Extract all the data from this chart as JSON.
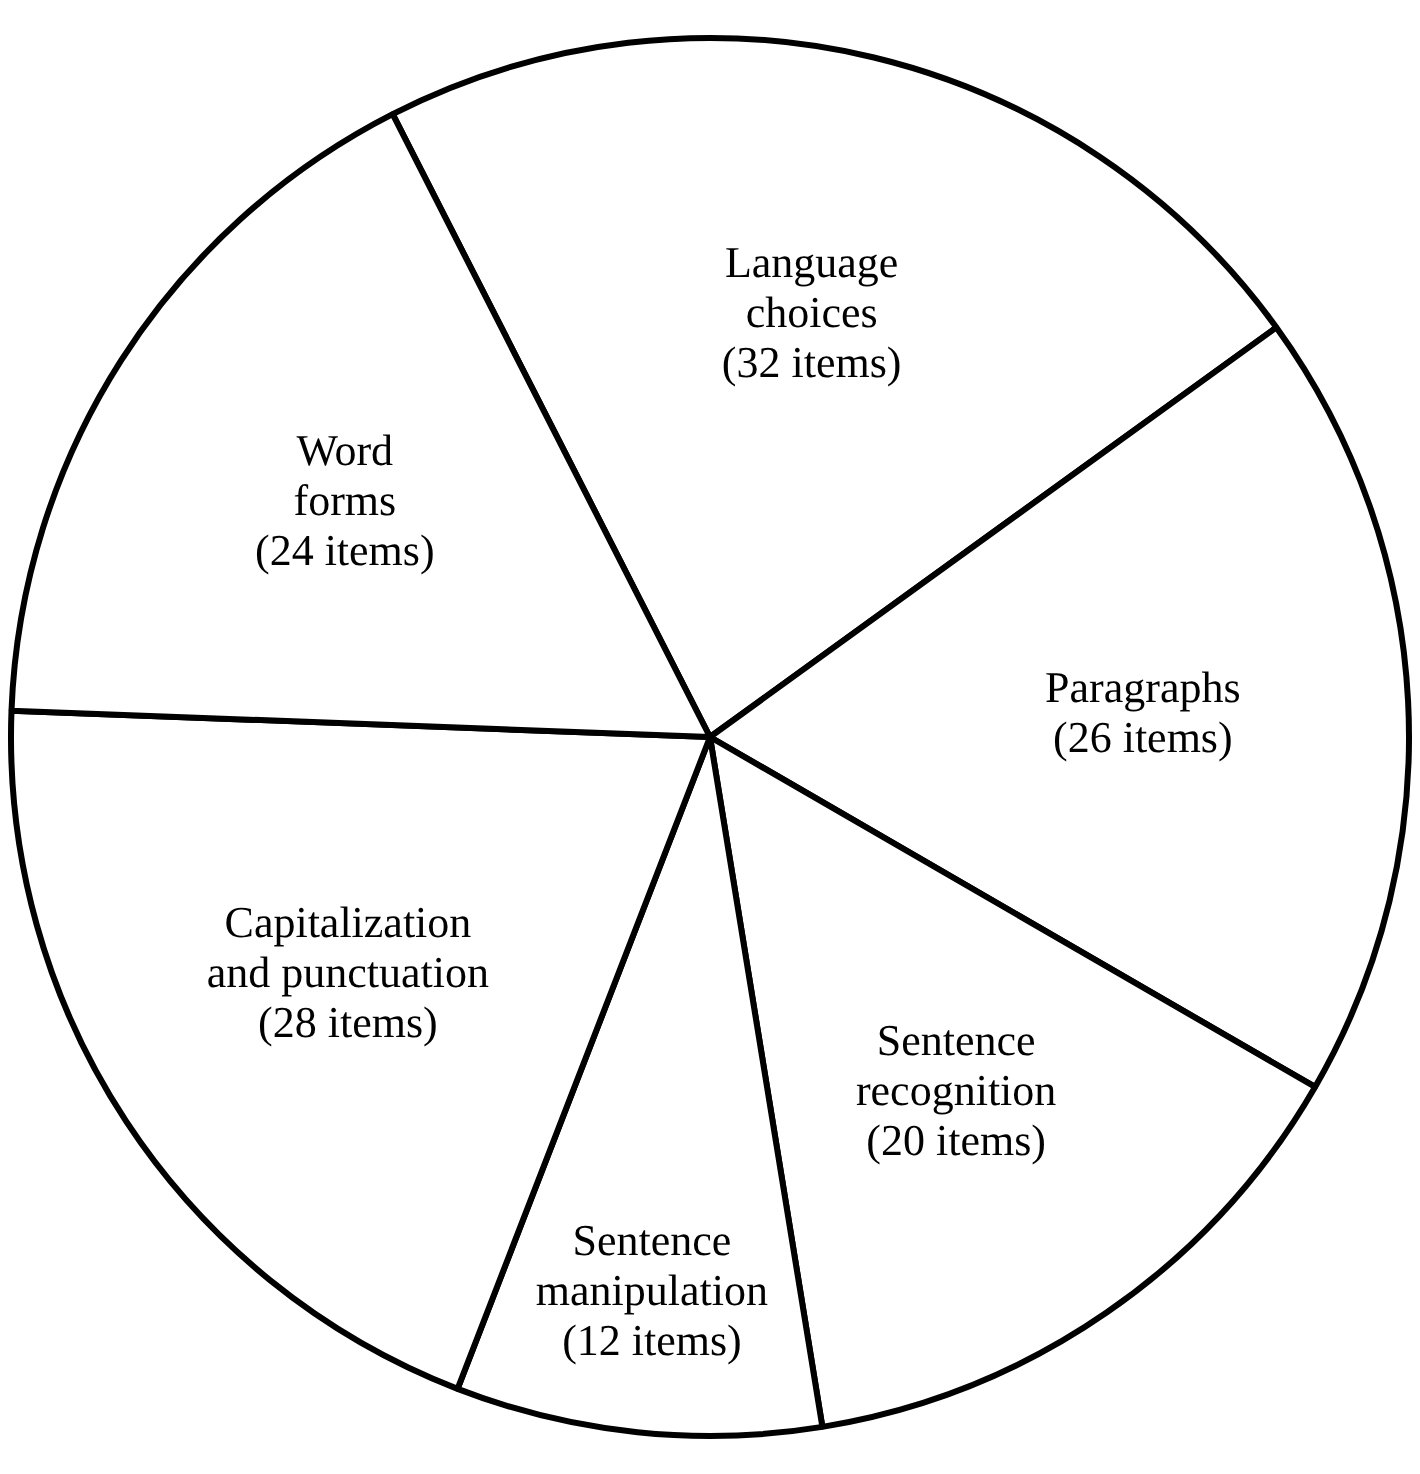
{
  "chart_data": {
    "type": "pie",
    "categories": [
      "Language choices",
      "Paragraphs",
      "Sentence recognition",
      "Sentence manipulation",
      "Capitalization and punctuation",
      "Word forms"
    ],
    "values": [
      32,
      26,
      20,
      12,
      28,
      24
    ],
    "value_labels": [
      "(32 items)",
      "(26 items)",
      "(20 items)",
      "(12 items)",
      "(28 items)",
      "(24 items)"
    ],
    "colors": [
      "#ffffff",
      "#ffffff",
      "#ffffff",
      "#ffffff",
      "#ffffff",
      "#ffffff"
    ],
    "legend": false
  }
}
